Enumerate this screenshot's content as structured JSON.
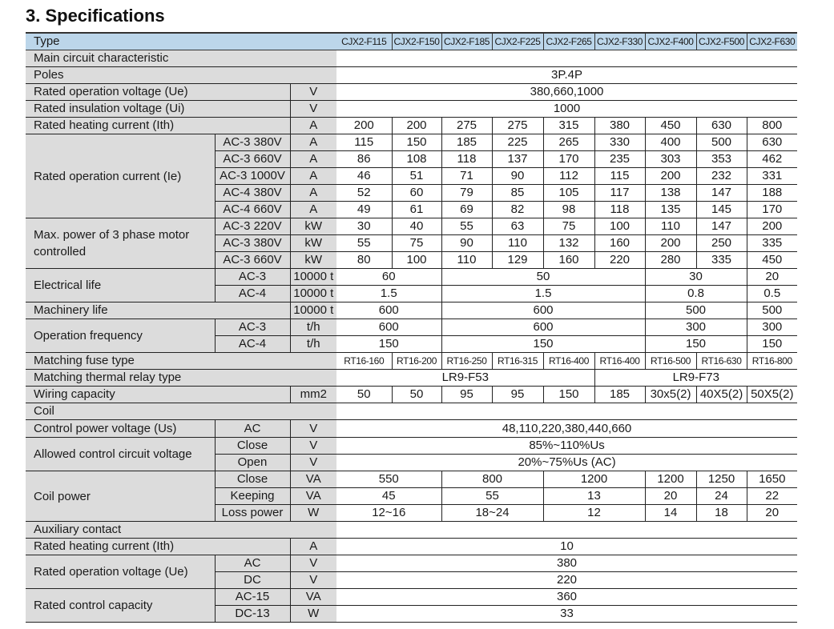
{
  "title": "3. Specifications",
  "header": {
    "label": "Type",
    "models": [
      "CJX2-F115",
      "CJX2-F150",
      "CJX2-F185",
      "CJX2-F225",
      "CJX2-F265",
      "CJX2-F330",
      "CJX2-F400",
      "CJX2-F500",
      "CJX2-F630"
    ]
  },
  "rows": [
    {
      "section": true,
      "label": "Main circuit characteristic"
    },
    {
      "label": "Poles",
      "values": [
        {
          "v": "3P.4P",
          "span": 9
        }
      ]
    },
    {
      "label": "Rated operation voltage (Ue)",
      "unit": "V",
      "values": [
        {
          "v": "380,660,1000",
          "span": 9
        }
      ]
    },
    {
      "label": "Rated insulation voltage (Ui)",
      "unit": "V",
      "values": [
        {
          "v": "1000",
          "span": 9
        }
      ]
    },
    {
      "label": "Rated heating current (Ith)",
      "unit": "A",
      "values": [
        {
          "v": "200"
        },
        {
          "v": "200"
        },
        {
          "v": "275"
        },
        {
          "v": "275"
        },
        {
          "v": "315"
        },
        {
          "v": "380"
        },
        {
          "v": "450"
        },
        {
          "v": "630"
        },
        {
          "v": "800"
        }
      ]
    },
    {
      "label": "Rated operation current (Ie)",
      "subs": [
        {
          "sub": "AC-3  380V",
          "unit": "A",
          "values": [
            {
              "v": "115"
            },
            {
              "v": "150"
            },
            {
              "v": "185"
            },
            {
              "v": "225"
            },
            {
              "v": "265"
            },
            {
              "v": "330"
            },
            {
              "v": "400"
            },
            {
              "v": "500"
            },
            {
              "v": "630"
            }
          ]
        },
        {
          "sub": "AC-3  660V",
          "unit": "A",
          "values": [
            {
              "v": "86"
            },
            {
              "v": "108"
            },
            {
              "v": "118"
            },
            {
              "v": "137"
            },
            {
              "v": "170"
            },
            {
              "v": "235"
            },
            {
              "v": "303"
            },
            {
              "v": "353"
            },
            {
              "v": "462"
            }
          ]
        },
        {
          "sub": "AC-3  1000V",
          "unit": "A",
          "values": [
            {
              "v": "46"
            },
            {
              "v": "51"
            },
            {
              "v": "71"
            },
            {
              "v": "90"
            },
            {
              "v": "112"
            },
            {
              "v": "115"
            },
            {
              "v": "200"
            },
            {
              "v": "232"
            },
            {
              "v": "331"
            }
          ]
        },
        {
          "sub": "AC-4  380V",
          "unit": "A",
          "values": [
            {
              "v": "52"
            },
            {
              "v": "60"
            },
            {
              "v": "79"
            },
            {
              "v": "85"
            },
            {
              "v": "105"
            },
            {
              "v": "117"
            },
            {
              "v": "138"
            },
            {
              "v": "147"
            },
            {
              "v": "188"
            }
          ]
        },
        {
          "sub": "AC-4  660V",
          "unit": "A",
          "values": [
            {
              "v": "49"
            },
            {
              "v": "61"
            },
            {
              "v": "69"
            },
            {
              "v": "82"
            },
            {
              "v": "98"
            },
            {
              "v": "118"
            },
            {
              "v": "135"
            },
            {
              "v": "145"
            },
            {
              "v": "170"
            }
          ]
        }
      ]
    },
    {
      "label": "Max. power of 3 phase motor controlled",
      "subs": [
        {
          "sub": "AC-3  220V",
          "unit": "kW",
          "values": [
            {
              "v": "30"
            },
            {
              "v": "40"
            },
            {
              "v": "55"
            },
            {
              "v": "63"
            },
            {
              "v": "75"
            },
            {
              "v": "100"
            },
            {
              "v": "110"
            },
            {
              "v": "147"
            },
            {
              "v": "200"
            }
          ]
        },
        {
          "sub": "AC-3  380V",
          "unit": "kW",
          "values": [
            {
              "v": "55"
            },
            {
              "v": "75"
            },
            {
              "v": "90"
            },
            {
              "v": "110"
            },
            {
              "v": "132"
            },
            {
              "v": "160"
            },
            {
              "v": "200"
            },
            {
              "v": "250"
            },
            {
              "v": "335"
            }
          ]
        },
        {
          "sub": "AC-3  660V",
          "unit": "kW",
          "values": [
            {
              "v": "80"
            },
            {
              "v": "100"
            },
            {
              "v": "110"
            },
            {
              "v": "129"
            },
            {
              "v": "160"
            },
            {
              "v": "220"
            },
            {
              "v": "280"
            },
            {
              "v": "335"
            },
            {
              "v": "450"
            }
          ]
        }
      ]
    },
    {
      "label": "Electrical life",
      "subs": [
        {
          "sub": "AC-3",
          "unit": "10000 t",
          "values": [
            {
              "v": "60",
              "span": 2
            },
            {
              "v": "50",
              "span": 4
            },
            {
              "v": "30",
              "span": 2
            },
            {
              "v": "20"
            }
          ]
        },
        {
          "sub": "AC-4",
          "unit": "10000 t",
          "values": [
            {
              "v": "1.5",
              "span": 2
            },
            {
              "v": "1.5",
              "span": 4
            },
            {
              "v": "0.8",
              "span": 2
            },
            {
              "v": "0.5"
            }
          ]
        }
      ]
    },
    {
      "label": "Machinery life",
      "unit": "10000 t",
      "values": [
        {
          "v": "600",
          "span": 2
        },
        {
          "v": "600",
          "span": 4
        },
        {
          "v": "500",
          "span": 2
        },
        {
          "v": "500"
        }
      ]
    },
    {
      "label": "Operation frequency",
      "subs": [
        {
          "sub": "AC-3",
          "unit": "t/h",
          "values": [
            {
              "v": "600",
              "span": 2
            },
            {
              "v": "600",
              "span": 4
            },
            {
              "v": "300",
              "span": 2
            },
            {
              "v": "300"
            }
          ]
        },
        {
          "sub": "AC-4",
          "unit": "t/h",
          "values": [
            {
              "v": "150",
              "span": 2
            },
            {
              "v": "150",
              "span": 4
            },
            {
              "v": "150",
              "span": 2
            },
            {
              "v": "150"
            }
          ]
        }
      ]
    },
    {
      "label": "Matching fuse type",
      "small": true,
      "values": [
        {
          "v": "RT16-160"
        },
        {
          "v": "RT16-200"
        },
        {
          "v": "RT16-250"
        },
        {
          "v": "RT16-315"
        },
        {
          "v": "RT16-400"
        },
        {
          "v": "RT16-400"
        },
        {
          "v": "RT16-500"
        },
        {
          "v": "RT16-630"
        },
        {
          "v": "RT16-800"
        }
      ]
    },
    {
      "label": "Matching thermal relay type",
      "values": [
        {
          "v": "LR9-F53",
          "span": 5
        },
        {
          "v": "LR9-F73",
          "span": 4
        }
      ]
    },
    {
      "label": "Wiring capacity",
      "unit": "mm2",
      "values": [
        {
          "v": "50"
        },
        {
          "v": "50"
        },
        {
          "v": "95"
        },
        {
          "v": "95"
        },
        {
          "v": "150"
        },
        {
          "v": "185"
        },
        {
          "v": "30x5(2)"
        },
        {
          "v": "40X5(2)"
        },
        {
          "v": "50X5(2)"
        }
      ]
    },
    {
      "section": true,
      "label": "Coil"
    },
    {
      "label": "Control power voltage (Us)",
      "subs": [
        {
          "sub": "AC",
          "unit": "V",
          "values": [
            {
              "v": "48,110,220,380,440,660",
              "span": 9
            }
          ]
        }
      ]
    },
    {
      "label": "Allowed control circuit voltage",
      "subs": [
        {
          "sub": "Close",
          "unit": "V",
          "values": [
            {
              "v": "85%~110%Us",
              "span": 9
            }
          ]
        },
        {
          "sub": "Open",
          "unit": "V",
          "values": [
            {
              "v": "20%~75%Us (AC)",
              "span": 9
            }
          ]
        }
      ]
    },
    {
      "label": "Coil power",
      "subs": [
        {
          "sub": "Close",
          "unit": "VA",
          "values": [
            {
              "v": "550",
              "span": 2
            },
            {
              "v": "800",
              "span": 2
            },
            {
              "v": "1200",
              "span": 2
            },
            {
              "v": "1200"
            },
            {
              "v": "1250"
            },
            {
              "v": "1650"
            }
          ]
        },
        {
          "sub": "Keeping",
          "unit": "VA",
          "values": [
            {
              "v": "45",
              "span": 2
            },
            {
              "v": "55",
              "span": 2
            },
            {
              "v": "13",
              "span": 2
            },
            {
              "v": "20"
            },
            {
              "v": "24"
            },
            {
              "v": "22"
            }
          ]
        },
        {
          "sub": "Loss power",
          "unit": "W",
          "values": [
            {
              "v": "12~16",
              "span": 2
            },
            {
              "v": "18~24",
              "span": 2
            },
            {
              "v": "12",
              "span": 2
            },
            {
              "v": "14"
            },
            {
              "v": "18"
            },
            {
              "v": "20"
            }
          ]
        }
      ]
    },
    {
      "section": true,
      "label": "Auxiliary contact"
    },
    {
      "label": "Rated heating current (Ith)",
      "unit": "A",
      "values": [
        {
          "v": "10",
          "span": 9
        }
      ]
    },
    {
      "label": "Rated operation voltage (Ue)",
      "subs": [
        {
          "sub": "AC",
          "unit": "V",
          "values": [
            {
              "v": "380",
              "span": 9
            }
          ]
        },
        {
          "sub": "DC",
          "unit": "V",
          "values": [
            {
              "v": "220",
              "span": 9
            }
          ]
        }
      ]
    },
    {
      "label": "Rated control capacity",
      "subs": [
        {
          "sub": "AC-15",
          "unit": "VA",
          "values": [
            {
              "v": "360",
              "span": 9
            }
          ]
        },
        {
          "sub": "DC-13",
          "unit": "W",
          "values": [
            {
              "v": "33",
              "span": 9
            }
          ]
        }
      ]
    }
  ]
}
